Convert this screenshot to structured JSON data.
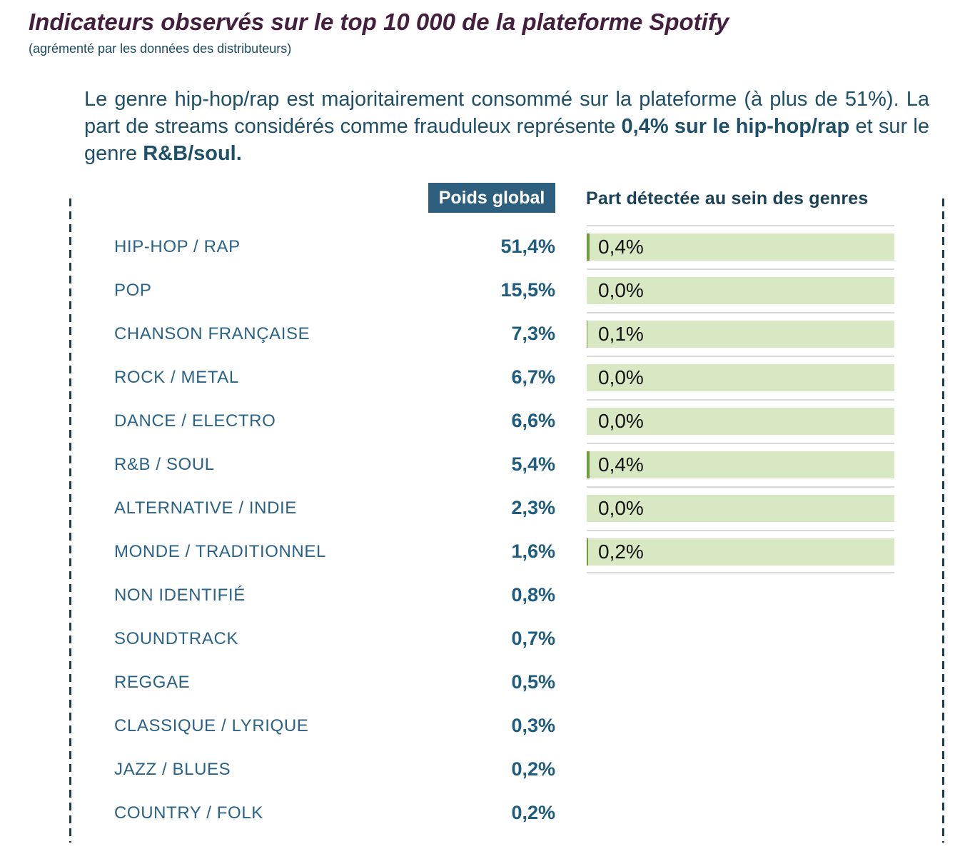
{
  "header": {
    "title": "Indicateurs observés sur le top 10 000 de la plateforme Spotify",
    "subtitle": "(agrémenté par les données des distributeurs)"
  },
  "intro": {
    "text1": "Le genre hip-hop/rap est majoritairement consommé sur la plateforme (à plus de 51%). La part de streams considérés comme frauduleux représente ",
    "bold1": "0,4% sur le hip-hop/rap",
    "text2": " et sur le genre ",
    "bold2": "R&B/soul."
  },
  "table": {
    "col_poids": "Poids global",
    "col_part": "Part détectée au sein des genres",
    "rows": [
      {
        "genre": "HIP-HOP / RAP",
        "poids": "51,4%",
        "part": "0,4%",
        "part_value": 0.4
      },
      {
        "genre": "POP",
        "poids": "15,5%",
        "part": "0,0%",
        "part_value": 0.0
      },
      {
        "genre": "CHANSON FRANÇAISE",
        "poids": "7,3%",
        "part": "0,1%",
        "part_value": 0.1
      },
      {
        "genre": "ROCK / METAL",
        "poids": "6,7%",
        "part": "0,0%",
        "part_value": 0.0
      },
      {
        "genre": "DANCE / ELECTRO",
        "poids": "6,6%",
        "part": "0,0%",
        "part_value": 0.0
      },
      {
        "genre": "R&B / SOUL",
        "poids": "5,4%",
        "part": "0,4%",
        "part_value": 0.4
      },
      {
        "genre": "ALTERNATIVE / INDIE",
        "poids": "2,3%",
        "part": "0,0%",
        "part_value": 0.0
      },
      {
        "genre": "MONDE / TRADITIONNEL",
        "poids": "1,6%",
        "part": "0,2%",
        "part_value": 0.2
      },
      {
        "genre": "NON IDENTIFIÉ",
        "poids": "0,8%",
        "part": null,
        "part_value": null
      },
      {
        "genre": "SOUNDTRACK",
        "poids": "0,7%",
        "part": null,
        "part_value": null
      },
      {
        "genre": "REGGAE",
        "poids": "0,5%",
        "part": null,
        "part_value": null
      },
      {
        "genre": "CLASSIQUE / LYRIQUE",
        "poids": "0,3%",
        "part": null,
        "part_value": null
      },
      {
        "genre": "JAZZ / BLUES",
        "poids": "0,2%",
        "part": null,
        "part_value": null
      },
      {
        "genre": "COUNTRY / FOLK",
        "poids": "0,2%",
        "part": null,
        "part_value": null
      }
    ]
  },
  "colors": {
    "title_plum": "#44203e",
    "body_teal": "#1e506a",
    "label_teal": "#2a6387",
    "value_teal": "#1e5c80",
    "header_box_bg": "#2e5f7e",
    "header_box_text": "#ffffff",
    "bar_background_green": "#d8e8c3",
    "bar_fill_green": "#6f9d3d",
    "separator_gray": "#d9d9d9",
    "dashed_rule_navy": "#1d3c52"
  },
  "chart_data": {
    "type": "bar",
    "orientation": "horizontal",
    "title": "Indicateurs observés sur le top 10 000 de la plateforme Spotify",
    "subtitle": "(agrémenté par les données des distributeurs)",
    "categories": [
      "HIP-HOP / RAP",
      "POP",
      "CHANSON FRANÇAISE",
      "ROCK / METAL",
      "DANCE / ELECTRO",
      "R&B / SOUL",
      "ALTERNATIVE / INDIE",
      "MONDE / TRADITIONNEL",
      "NON IDENTIFIÉ",
      "SOUNDTRACK",
      "REGGAE",
      "CLASSIQUE / LYRIQUE",
      "JAZZ / BLUES",
      "COUNTRY / FOLK"
    ],
    "series": [
      {
        "name": "Poids global",
        "unit": "%",
        "values": [
          51.4,
          15.5,
          7.3,
          6.7,
          6.6,
          5.4,
          2.3,
          1.6,
          0.8,
          0.7,
          0.5,
          0.3,
          0.2,
          0.2
        ]
      },
      {
        "name": "Part détectée au sein des genres",
        "unit": "%",
        "values": [
          0.4,
          0.0,
          0.1,
          0.0,
          0.0,
          0.4,
          0.0,
          0.2,
          null,
          null,
          null,
          null,
          null,
          null
        ]
      }
    ],
    "legend_position": "none",
    "grid": false,
    "annotations": "Les 8 premiers genres disposent d'une barre verte (fond 100%) avec la part détectée affichée en étiquette"
  }
}
